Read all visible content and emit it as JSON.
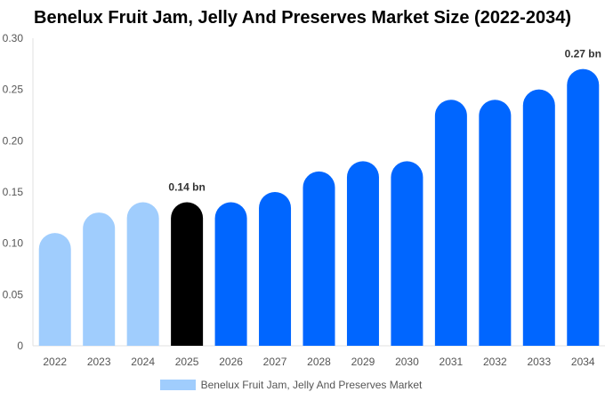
{
  "chart_data": {
    "type": "bar",
    "title": "Benelux Fruit Jam, Jelly And Preserves Market Size (2022-2034)",
    "categories": [
      "2022",
      "2023",
      "2024",
      "2025",
      "2026",
      "2027",
      "2028",
      "2029",
      "2030",
      "2031",
      "2032",
      "2033",
      "2034"
    ],
    "series": [
      {
        "name": "Benelux Fruit Jam, Jelly And Preserves Market",
        "values": [
          0.11,
          0.13,
          0.14,
          0.14,
          0.14,
          0.15,
          0.17,
          0.18,
          0.18,
          0.24,
          0.24,
          0.25,
          0.27
        ]
      }
    ],
    "bar_colors": [
      "#a0cdfd",
      "#a0cdfd",
      "#a0cdfd",
      "#000000",
      "#0066ff",
      "#0066ff",
      "#0066ff",
      "#0066ff",
      "#0066ff",
      "#0066ff",
      "#0066ff",
      "#0066ff",
      "#0066ff"
    ],
    "data_labels": {
      "3": "0.14 bn",
      "12": "0.27 bn"
    },
    "ylim": [
      0,
      0.3
    ],
    "yticks": [
      "0",
      "0.05",
      "0.10",
      "0.15",
      "0.20",
      "0.25",
      "0.30"
    ],
    "xlabel": "",
    "ylabel": "",
    "grid": false,
    "legend": "bottom"
  }
}
